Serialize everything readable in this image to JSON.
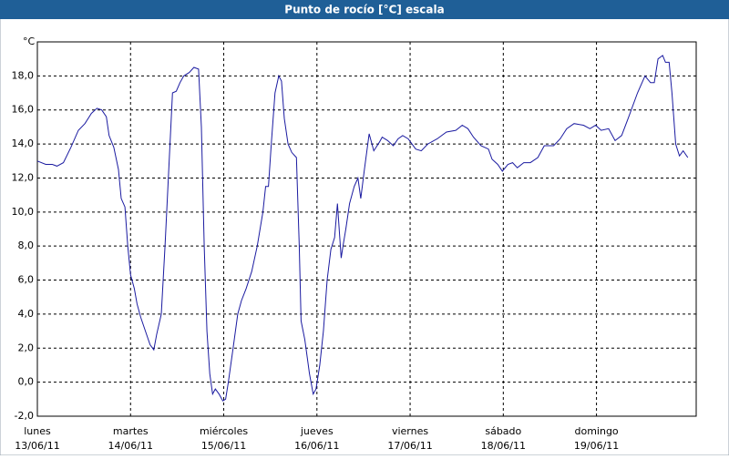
{
  "chart_data": {
    "type": "line",
    "title": "Punto de rocío [°C] escala",
    "y_label": "°C",
    "xlim": [
      0,
      7.07
    ],
    "xticks": [
      {
        "value": 0,
        "label": "lunes",
        "date": "13/06/11"
      },
      {
        "value": 1,
        "label": "martes",
        "date": "14/06/11"
      },
      {
        "value": 2,
        "label": "miércoles",
        "date": "15/06/11"
      },
      {
        "value": 3,
        "label": "jueves",
        "date": "16/06/11"
      },
      {
        "value": 4,
        "label": "viernes",
        "date": "17/06/11"
      },
      {
        "value": 5,
        "label": "sábado",
        "date": "18/06/11"
      },
      {
        "value": 6,
        "label": "domingo",
        "date": "19/06/11"
      }
    ],
    "ylim": [
      -2,
      20
    ],
    "yticks": [
      {
        "value": -2,
        "label": "-2,0"
      },
      {
        "value": 0,
        "label": "0,0"
      },
      {
        "value": 2,
        "label": "2,0"
      },
      {
        "value": 4,
        "label": "4,0"
      },
      {
        "value": 6,
        "label": "6,0"
      },
      {
        "value": 8,
        "label": "8,0"
      },
      {
        "value": 10,
        "label": "10,0"
      },
      {
        "value": 12,
        "label": "12,0"
      },
      {
        "value": 14,
        "label": "14,0"
      },
      {
        "value": 16,
        "label": "16,0"
      },
      {
        "value": 18,
        "label": "18,0"
      }
    ],
    "grid": true,
    "series": [
      {
        "color": "#1a1aa0",
        "x": [
          0,
          0.09,
          0.16,
          0.21,
          0.28,
          0.36,
          0.44,
          0.51,
          0.58,
          0.64,
          0.69,
          0.74,
          0.77,
          0.82,
          0.87,
          0.9,
          0.94,
          0.97,
          1.0,
          1.04,
          1.07,
          1.11,
          1.16,
          1.21,
          1.25,
          1.28,
          1.33,
          1.37,
          1.41,
          1.45,
          1.49,
          1.53,
          1.57,
          1.63,
          1.68,
          1.73,
          1.76,
          1.79,
          1.82,
          1.85,
          1.88,
          1.91,
          1.95,
          1.99,
          2.02,
          2.05,
          2.1,
          2.15,
          2.19,
          2.24,
          2.3,
          2.36,
          2.42,
          2.45,
          2.48,
          2.51,
          2.55,
          2.59,
          2.62,
          2.65,
          2.69,
          2.73,
          2.78,
          2.81,
          2.83,
          2.87,
          2.92,
          2.96,
          2.99,
          3.03,
          3.07,
          3.11,
          3.15,
          3.19,
          3.22,
          3.26,
          3.28,
          3.31,
          3.35,
          3.4,
          3.44,
          3.47,
          3.51,
          3.56,
          3.61,
          3.67,
          3.7,
          3.76,
          3.82,
          3.87,
          3.92,
          3.98,
          4.06,
          4.12,
          4.19,
          4.29,
          4.39,
          4.49,
          4.56,
          4.62,
          4.68,
          4.76,
          4.84,
          4.88,
          4.94,
          4.99,
          5.05,
          5.1,
          5.15,
          5.22,
          5.29,
          5.37,
          5.44,
          5.54,
          5.61,
          5.68,
          5.76,
          5.86,
          5.93,
          5.99,
          6.05,
          6.13,
          6.2,
          6.27,
          6.34,
          6.44,
          6.52,
          6.58,
          6.62,
          6.66,
          6.71,
          6.74,
          6.78,
          6.81,
          6.85,
          6.89,
          6.93,
          6.98
        ],
        "values": [
          13.0,
          12.8,
          12.8,
          12.7,
          12.9,
          13.8,
          14.8,
          15.2,
          15.8,
          16.1,
          16.0,
          15.6,
          14.5,
          13.8,
          12.5,
          10.8,
          10.3,
          8.0,
          6.3,
          5.5,
          4.6,
          3.8,
          3.0,
          2.2,
          1.9,
          2.8,
          4.0,
          8.0,
          12.5,
          17.0,
          17.1,
          17.6,
          18.0,
          18.2,
          18.5,
          18.4,
          15.0,
          8.0,
          3.0,
          0.5,
          -0.7,
          -0.4,
          -0.7,
          -1.1,
          -1.0,
          0.0,
          2.0,
          4.0,
          4.8,
          5.5,
          6.5,
          8.0,
          10.0,
          11.5,
          11.5,
          14.0,
          17.0,
          18.0,
          17.7,
          15.5,
          14.0,
          13.5,
          13.2,
          8.0,
          3.6,
          2.5,
          0.5,
          -0.7,
          -0.4,
          1.0,
          3.0,
          6.0,
          7.8,
          8.5,
          10.5,
          7.3,
          8.0,
          9.0,
          10.5,
          11.5,
          12.0,
          10.8,
          12.5,
          14.6,
          13.6,
          14.1,
          14.4,
          14.2,
          13.9,
          14.3,
          14.5,
          14.3,
          13.7,
          13.6,
          14.0,
          14.3,
          14.7,
          14.8,
          15.1,
          14.9,
          14.4,
          13.9,
          13.7,
          13.1,
          12.8,
          12.4,
          12.8,
          12.9,
          12.6,
          12.9,
          12.9,
          13.2,
          13.9,
          13.9,
          14.3,
          14.9,
          15.2,
          15.1,
          14.9,
          15.1,
          14.8,
          14.9,
          14.2,
          14.5,
          15.5,
          17.0,
          18.0,
          17.6,
          17.6,
          19.0,
          19.2,
          18.8,
          18.8,
          17.0,
          14.0,
          13.3,
          13.6,
          13.2
        ]
      }
    ]
  }
}
